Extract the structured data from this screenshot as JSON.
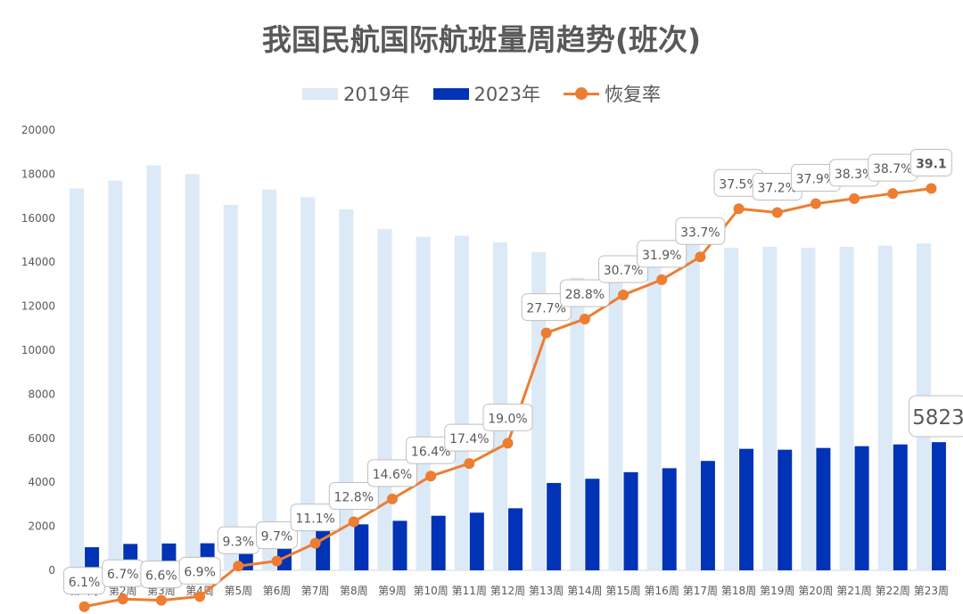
{
  "colors": {
    "bar2019": "#dce9f6",
    "bar2023": "#0033b5",
    "line": "#ed7d31",
    "axis_text": "#595959"
  },
  "chart_data": {
    "type": "bar",
    "title": "我国民航国际航班量周趋势(班次)",
    "categories": [
      "第1周",
      "第2周",
      "第3周",
      "第4周",
      "第5周",
      "第6周",
      "第7周",
      "第8周",
      "第9周",
      "第10周",
      "第11周",
      "第12周",
      "第13周",
      "第14周",
      "第15周",
      "第16周",
      "第17周",
      "第18周",
      "第19周",
      "第20周",
      "第21周",
      "第22周",
      "第23周"
    ],
    "series": [
      {
        "name": "2019年",
        "type": "bar",
        "axis": "left",
        "values": [
          17350,
          17700,
          18400,
          18000,
          16600,
          17300,
          16950,
          16400,
          15500,
          15150,
          15200,
          14900,
          14450,
          13300,
          14100,
          14500,
          14850,
          14650,
          14700,
          14650,
          14700,
          14750,
          14850
        ]
      },
      {
        "name": "2023年",
        "type": "bar",
        "axis": "left",
        "values": [
          1050,
          1200,
          1220,
          1230,
          1550,
          1670,
          1860,
          2090,
          2250,
          2480,
          2620,
          2820,
          3970,
          4160,
          4460,
          4640,
          4970,
          5520,
          5480,
          5560,
          5640,
          5720,
          5823
        ]
      },
      {
        "name": "恢复率",
        "type": "line",
        "axis": "right",
        "values": [
          6.1,
          6.7,
          6.6,
          6.9,
          9.3,
          9.7,
          11.1,
          12.8,
          14.6,
          16.4,
          17.4,
          19.0,
          27.7,
          28.8,
          30.7,
          31.9,
          33.7,
          37.5,
          37.2,
          37.9,
          38.3,
          38.7,
          39.1
        ],
        "labels": [
          "6.1%",
          "6.7%",
          "6.6%",
          "6.9%",
          "9.3%",
          "9.7%",
          "11.1%",
          "12.8%",
          "14.6%",
          "16.4%",
          "17.4%",
          "19.0%",
          "27.7%",
          "28.8%",
          "30.7%",
          "31.9%",
          "33.7%",
          "37.5%",
          "37.2%",
          "37.9%",
          "38.3%",
          "38.7%",
          "39.1"
        ]
      }
    ],
    "bar_callout": {
      "label": "5823"
    },
    "y_ticks": [
      "0",
      "2000",
      "4000",
      "6000",
      "8000",
      "10000",
      "12000",
      "14000",
      "16000",
      "18000",
      "20000"
    ],
    "ylim": [
      0,
      20000
    ],
    "legend_position": "top-center",
    "grid": false
  }
}
